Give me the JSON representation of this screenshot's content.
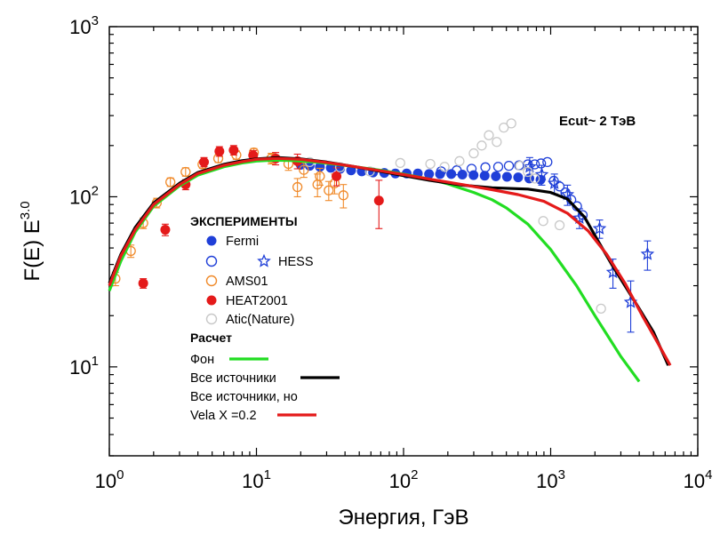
{
  "chart_data": {
    "type": "scatter",
    "xlabel": "Энергия, ГэВ",
    "ylabel_base": "F(E) E",
    "ylabel_exp": "3.0",
    "xscale": "log",
    "yscale": "log",
    "xlim": [
      1,
      10000
    ],
    "ylim": [
      3,
      1000
    ],
    "x_ticks": [
      {
        "v": 1,
        "base": "10",
        "exp": "0"
      },
      {
        "v": 10,
        "base": "10",
        "exp": "1"
      },
      {
        "v": 100,
        "base": "10",
        "exp": "2"
      },
      {
        "v": 1000,
        "base": "10",
        "exp": "3"
      },
      {
        "v": 10000,
        "base": "10",
        "exp": "4"
      }
    ],
    "y_ticks": [
      {
        "v": 10,
        "base": "10",
        "exp": "1"
      },
      {
        "v": 100,
        "base": "10",
        "exp": "2"
      },
      {
        "v": 1000,
        "base": "10",
        "exp": "3"
      }
    ],
    "annotation": "Ecut~ 2 ТэВ",
    "legend": {
      "experiments_title": "ЭКСПЕРИМЕНТЫ",
      "fermi": "Fermi",
      "hess": "HESS",
      "ams": "AMS01",
      "heat": "HEAT2001",
      "atic": "Atic(Nature)",
      "calc_title": "Расчет",
      "bg": "Фон",
      "all": "Все источники",
      "vela_line1": "Все источники, но",
      "vela_line2": "Vela X =0.2"
    },
    "colors": {
      "fermi": "#1f3fd8",
      "hess": "#1f3fd8",
      "ams": "#f08a2a",
      "heat": "#e41a1a",
      "atic": "#c8c8c8",
      "bg_line": "#22dd22",
      "all_line": "#000000",
      "vela_line": "#e41a1a"
    },
    "series": [
      {
        "name": "Fermi",
        "marker": "filled-circle",
        "color": "#1f3fd8",
        "points": [
          [
            20,
            154
          ],
          [
            23,
            152
          ],
          [
            27,
            150
          ],
          [
            32,
            148
          ],
          [
            37,
            146
          ],
          [
            44,
            143
          ],
          [
            52,
            141
          ],
          [
            62,
            139
          ],
          [
            74,
            138
          ],
          [
            88,
            137
          ],
          [
            105,
            137
          ],
          [
            125,
            137
          ],
          [
            149,
            136
          ],
          [
            177,
            136
          ],
          [
            211,
            136
          ],
          [
            251,
            135
          ],
          [
            299,
            134
          ],
          [
            356,
            133
          ],
          [
            424,
            132
          ],
          [
            505,
            131
          ],
          [
            601,
            130
          ],
          [
            716,
            128
          ],
          [
            853,
            126
          ]
        ]
      },
      {
        "name": "Fermi (open)",
        "marker": "open-circle",
        "color": "#1f3fd8",
        "points": [
          [
            180,
            141
          ],
          [
            230,
            143
          ],
          [
            290,
            146
          ],
          [
            360,
            149
          ],
          [
            440,
            150
          ],
          [
            520,
            152
          ],
          [
            610,
            153
          ],
          [
            700,
            155
          ],
          [
            780,
            155
          ],
          [
            860,
            157
          ],
          [
            950,
            160
          ],
          [
            1050,
            124
          ],
          [
            1150,
            115
          ],
          [
            1260,
            106
          ],
          [
            1380,
            96
          ],
          [
            1510,
            88
          ],
          [
            1650,
            78
          ]
        ]
      },
      {
        "name": "HESS",
        "marker": "star",
        "color": "#1f3fd8",
        "points": [
          [
            720,
            150,
            20
          ],
          [
            870,
            135,
            18
          ],
          [
            1060,
            120,
            16
          ],
          [
            1300,
            103,
            14
          ],
          [
            1570,
            75,
            10
          ],
          [
            2150,
            65,
            8
          ],
          [
            2650,
            36,
            7
          ],
          [
            3500,
            24,
            8
          ],
          [
            4550,
            46,
            9
          ]
        ]
      },
      {
        "name": "AMS01",
        "marker": "open-circle",
        "color": "#f08a2a",
        "points": [
          [
            1.1,
            33,
            3
          ],
          [
            1.4,
            48,
            4
          ],
          [
            1.7,
            70,
            5
          ],
          [
            2.1,
            92,
            6
          ],
          [
            2.6,
            122,
            7
          ],
          [
            3.3,
            140,
            8
          ],
          [
            4.3,
            155,
            8
          ],
          [
            5.5,
            168,
            9
          ],
          [
            7.3,
            176,
            10
          ],
          [
            9.6,
            182,
            10
          ],
          [
            12.6,
            168,
            12
          ],
          [
            16.5,
            156,
            13
          ],
          [
            21,
            144,
            14
          ],
          [
            27,
            132,
            15
          ],
          [
            34,
            120,
            16
          ],
          [
            19,
            114,
            14
          ],
          [
            31,
            109,
            14
          ],
          [
            39,
            102,
            16
          ],
          [
            26,
            118,
            18
          ]
        ]
      },
      {
        "name": "HEAT2001",
        "marker": "filled-circle",
        "color": "#e41a1a",
        "points": [
          [
            1.7,
            31,
            2
          ],
          [
            2.4,
            64,
            5
          ],
          [
            3.3,
            118,
            8
          ],
          [
            4.4,
            160,
            10
          ],
          [
            5.6,
            185,
            12
          ],
          [
            7.0,
            188,
            12
          ],
          [
            9.5,
            175,
            12
          ],
          [
            13.5,
            168,
            14
          ],
          [
            19,
            162,
            16
          ],
          [
            35,
            132,
            16
          ],
          [
            68,
            95,
            30
          ]
        ]
      },
      {
        "name": "Atic(Nature)",
        "marker": "open-circle",
        "color": "#c8c8c8",
        "points": [
          [
            23,
            160
          ],
          [
            37,
            149
          ],
          [
            59,
            141
          ],
          [
            95,
            158
          ],
          [
            152,
            156
          ],
          [
            190,
            150
          ],
          [
            240,
            162
          ],
          [
            300,
            180
          ],
          [
            340,
            200
          ],
          [
            380,
            230
          ],
          [
            430,
            210
          ],
          [
            480,
            255
          ],
          [
            540,
            270
          ],
          [
            620,
            152
          ],
          [
            700,
            140
          ],
          [
            780,
            128
          ],
          [
            890,
            72
          ],
          [
            1150,
            68
          ],
          [
            2200,
            22
          ]
        ]
      }
    ],
    "lines": [
      {
        "name": "Фон",
        "color": "#22dd22",
        "points": [
          [
            1,
            28
          ],
          [
            1.2,
            42
          ],
          [
            1.5,
            62
          ],
          [
            2,
            88
          ],
          [
            3,
            116
          ],
          [
            4,
            134
          ],
          [
            6,
            150
          ],
          [
            8,
            158
          ],
          [
            10,
            162
          ],
          [
            13,
            164
          ],
          [
            18,
            163
          ],
          [
            25,
            160
          ],
          [
            35,
            155
          ],
          [
            50,
            149
          ],
          [
            70,
            143
          ],
          [
            100,
            136
          ],
          [
            150,
            127
          ],
          [
            200,
            119
          ],
          [
            300,
            106
          ],
          [
            400,
            96
          ],
          [
            500,
            86
          ],
          [
            700,
            69
          ],
          [
            1000,
            49
          ],
          [
            1500,
            30
          ],
          [
            2000,
            20
          ],
          [
            3000,
            11.5
          ],
          [
            4000,
            8.2
          ]
        ]
      },
      {
        "name": "Все источники",
        "color": "#000000",
        "points": [
          [
            1,
            31
          ],
          [
            1.2,
            46
          ],
          [
            1.5,
            66
          ],
          [
            2,
            92
          ],
          [
            3,
            120
          ],
          [
            4,
            139
          ],
          [
            6,
            155
          ],
          [
            8,
            163
          ],
          [
            10,
            167
          ],
          [
            14,
            170
          ],
          [
            20,
            167
          ],
          [
            30,
            160
          ],
          [
            45,
            151
          ],
          [
            70,
            141
          ],
          [
            100,
            133
          ],
          [
            150,
            125
          ],
          [
            250,
            117
          ],
          [
            400,
            113
          ],
          [
            700,
            111
          ],
          [
            1000,
            106
          ],
          [
            1300,
            97
          ],
          [
            1700,
            76
          ],
          [
            2100,
            55
          ],
          [
            2600,
            40
          ],
          [
            3200,
            30
          ],
          [
            4000,
            22
          ],
          [
            5000,
            16
          ],
          [
            6300,
            10.2
          ]
        ]
      },
      {
        "name": "Все источники, но Vela X =0.2",
        "color": "#e41a1a",
        "points": [
          [
            1,
            30
          ],
          [
            1.2,
            45
          ],
          [
            1.5,
            64
          ],
          [
            2,
            90
          ],
          [
            3,
            118
          ],
          [
            4,
            137
          ],
          [
            6,
            153
          ],
          [
            8,
            161
          ],
          [
            10,
            166
          ],
          [
            14,
            168
          ],
          [
            20,
            166
          ],
          [
            30,
            159
          ],
          [
            45,
            151
          ],
          [
            70,
            142
          ],
          [
            100,
            135
          ],
          [
            150,
            127
          ],
          [
            250,
            118
          ],
          [
            400,
            110
          ],
          [
            600,
            103
          ],
          [
            900,
            94
          ],
          [
            1300,
            80
          ],
          [
            1800,
            63
          ],
          [
            2400,
            46
          ],
          [
            3200,
            31
          ],
          [
            4200,
            20
          ],
          [
            5300,
            14
          ],
          [
            6500,
            10.2
          ]
        ]
      }
    ]
  }
}
